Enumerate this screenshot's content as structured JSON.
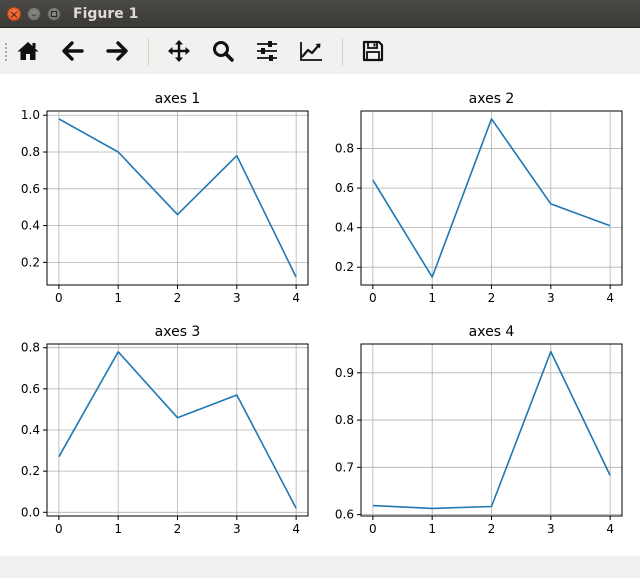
{
  "window": {
    "title": "Figure 1",
    "controls": [
      "close",
      "minimize",
      "maximize"
    ]
  },
  "toolbar": {
    "tools": [
      {
        "name": "home-tool",
        "icon": "home-icon"
      },
      {
        "name": "back-tool",
        "icon": "arrow-left-icon"
      },
      {
        "name": "forward-tool",
        "icon": "arrow-right-icon"
      },
      {
        "name": "pan-tool",
        "icon": "move-icon"
      },
      {
        "name": "zoom-tool",
        "icon": "magnifier-icon"
      },
      {
        "name": "subplots-tool",
        "icon": "sliders-icon"
      },
      {
        "name": "axes-edit-tool",
        "icon": "line-chart-icon"
      },
      {
        "name": "save-tool",
        "icon": "floppy-disk-icon"
      }
    ]
  },
  "colors": {
    "line": "#1f77b4",
    "grid": "#b0b0b0",
    "axes": "#000000"
  },
  "chart_data": [
    {
      "type": "line",
      "title": "axes 1",
      "x": [
        0,
        1,
        2,
        3,
        4
      ],
      "values": [
        0.98,
        0.8,
        0.46,
        0.78,
        0.12
      ],
      "xticks": [
        0,
        1,
        2,
        3,
        4
      ],
      "yticks": [
        0.2,
        0.4,
        0.6,
        0.8,
        1.0
      ],
      "ytick_labels": [
        "0.2",
        "0.4",
        "0.6",
        "0.8",
        "1.0"
      ],
      "xlim": [
        -0.2,
        4.2
      ],
      "ylim": [
        0.077,
        1.023
      ],
      "grid": true
    },
    {
      "type": "line",
      "title": "axes 2",
      "x": [
        0,
        1,
        2,
        3,
        4
      ],
      "values": [
        0.64,
        0.15,
        0.95,
        0.52,
        0.41
      ],
      "xticks": [
        0,
        1,
        2,
        3,
        4
      ],
      "yticks": [
        0.2,
        0.4,
        0.6,
        0.8
      ],
      "ytick_labels": [
        "0.2",
        "0.4",
        "0.6",
        "0.8"
      ],
      "xlim": [
        -0.2,
        4.2
      ],
      "ylim": [
        0.11,
        0.99
      ],
      "grid": true
    },
    {
      "type": "line",
      "title": "axes 3",
      "x": [
        0,
        1,
        2,
        3,
        4
      ],
      "values": [
        0.27,
        0.78,
        0.46,
        0.57,
        0.02
      ],
      "xticks": [
        0,
        1,
        2,
        3,
        4
      ],
      "yticks": [
        0.0,
        0.2,
        0.4,
        0.6,
        0.8
      ],
      "ytick_labels": [
        "0.0",
        "0.2",
        "0.4",
        "0.6",
        "0.8"
      ],
      "xlim": [
        -0.2,
        4.2
      ],
      "ylim": [
        -0.018,
        0.818
      ],
      "grid": true
    },
    {
      "type": "line",
      "title": "axes 4",
      "x": [
        0,
        1,
        2,
        3,
        4
      ],
      "values": [
        0.619,
        0.613,
        0.617,
        0.945,
        0.683
      ],
      "xticks": [
        0,
        1,
        2,
        3,
        4
      ],
      "yticks": [
        0.6,
        0.7,
        0.8,
        0.9
      ],
      "ytick_labels": [
        "0.6",
        "0.7",
        "0.8",
        "0.9"
      ],
      "xlim": [
        -0.2,
        4.2
      ],
      "ylim": [
        0.597,
        0.961
      ],
      "grid": true
    }
  ]
}
